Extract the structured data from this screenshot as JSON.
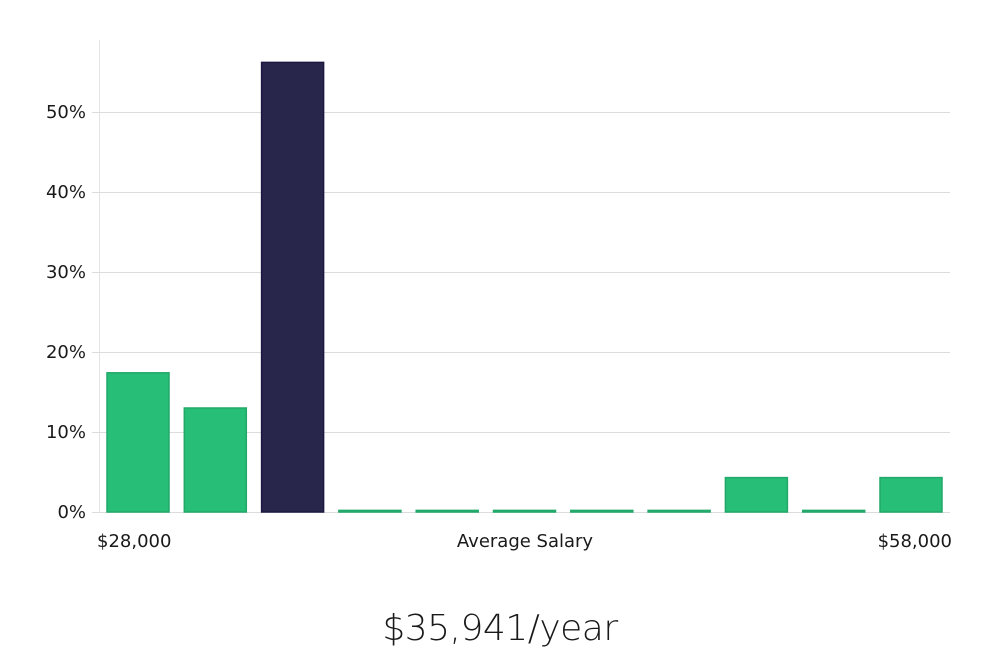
{
  "chart_data": {
    "type": "bar",
    "title": "",
    "xlabel": "Average Salary",
    "ylabel": "",
    "x_start_label": "$28,000",
    "x_end_label": "$58,000",
    "ylim": [
      0,
      59
    ],
    "yticks": [
      0,
      10,
      20,
      30,
      40,
      50
    ],
    "ytick_labels": [
      "0%",
      "10%",
      "20%",
      "30%",
      "40%",
      "50%"
    ],
    "grid": true,
    "values": [
      17.4,
      13.0,
      56.2,
      0.2,
      0.2,
      0.2,
      0.2,
      0.2,
      4.3,
      0.2,
      4.3
    ],
    "highlight_index": 2,
    "colors": {
      "bar": "#27be78",
      "bar_border": "#22a869",
      "highlight": "#29264b",
      "highlight_border": "#1a1840"
    }
  },
  "summary": {
    "salary_text": "$35,941/year"
  }
}
